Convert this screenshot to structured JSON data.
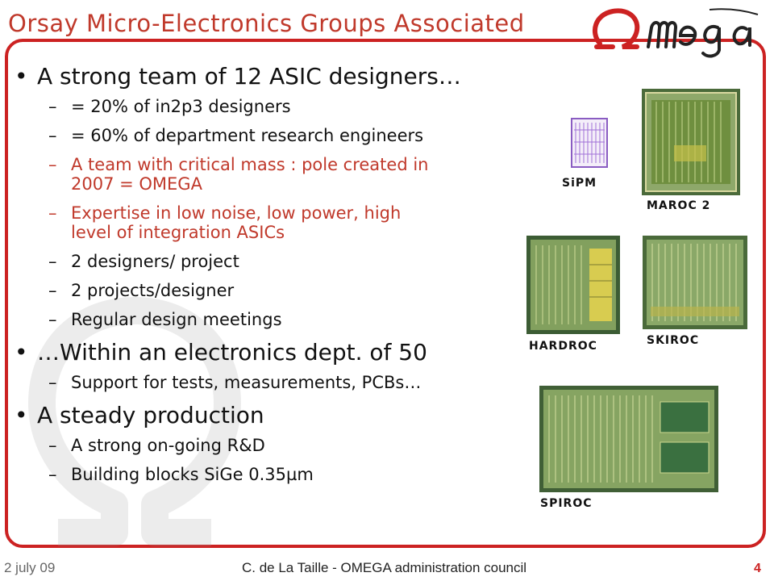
{
  "title": "Orsay Micro-Electronics Groups Associated",
  "logo_text": "Omega",
  "colors": {
    "accent": "#cc2222",
    "title": "#c0392b",
    "highlight_text": "#c0392b",
    "body_text": "#111111"
  },
  "bullets": [
    {
      "text": "A strong team of 12 ASIC designers…",
      "subitems": [
        {
          "lines": [
            "= 20% of in2p3 designers"
          ],
          "highlight": false
        },
        {
          "lines": [
            "= 60% of department research engineers"
          ],
          "highlight": false
        },
        {
          "lines": [
            "A team with critical mass : pole created in",
            "2007 = OMEGA"
          ],
          "highlight": true
        },
        {
          "lines": [
            "Expertise in low noise, low power, high",
            "level of integration ASICs"
          ],
          "highlight": true
        },
        {
          "lines": [
            "2 designers/ project"
          ],
          "highlight": false
        },
        {
          "lines": [
            "2 projects/designer"
          ],
          "highlight": false
        },
        {
          "lines": [
            "Regular design meetings"
          ],
          "highlight": false
        }
      ]
    },
    {
      "text": "…Within an electronics dept. of 50",
      "subitems": [
        {
          "lines": [
            "Support for tests, measurements, PCBs…"
          ],
          "highlight": false
        }
      ]
    },
    {
      "text": "A steady production",
      "subitems": [
        {
          "lines": [
            "A strong on-going R&D"
          ],
          "highlight": false
        },
        {
          "lines": [
            "Building blocks SiGe 0.35µm"
          ],
          "highlight": false
        }
      ]
    }
  ],
  "chips": {
    "sipm": "SiPM",
    "maroc2": "MAROC 2",
    "hardroc": "HARDROC",
    "skiroc": "SKIROC",
    "spiroc": "SPIROC"
  },
  "footer": {
    "date": "2 july 09",
    "presenter": "C. de La Taille - OMEGA administration council",
    "page": "4"
  }
}
